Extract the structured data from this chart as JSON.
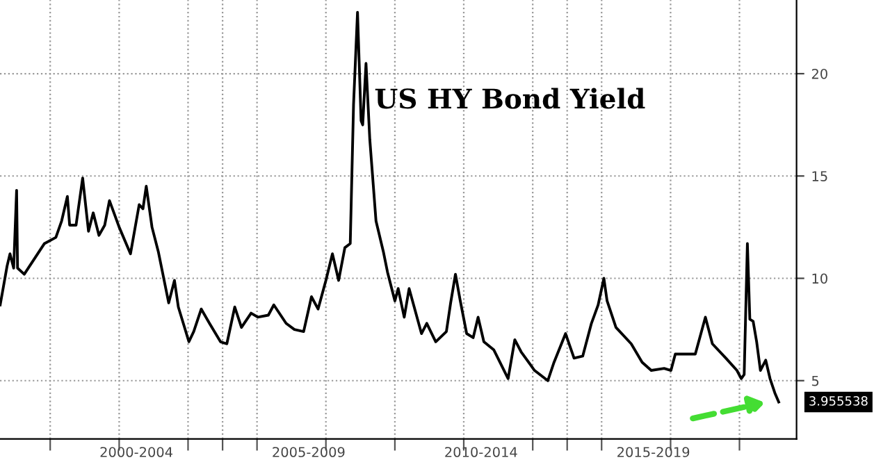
{
  "chart_data": {
    "type": "line",
    "title": "US HY Bond Yield",
    "x": [
      "1998-07-20",
      "1998-10-01",
      "1998-11-01",
      "1998-12-10",
      "1999-01-10",
      "1999-01-20",
      "1999-04-01",
      "1999-11-01",
      "2000-03-01",
      "2000-05-01",
      "2000-07-01",
      "2000-07-25",
      "2000-10-01",
      "2000-12-10",
      "2001-02-10",
      "2001-04-01",
      "2001-06-01",
      "2001-08-01",
      "2001-09-20",
      "2002-01-01",
      "2002-05-01",
      "2002-08-01",
      "2002-09-10",
      "2002-10-15",
      "2002-12-15",
      "2003-02-20",
      "2003-06-10",
      "2003-08-10",
      "2003-09-20",
      "2004-01-10",
      "2004-03-01",
      "2004-05-20",
      "2004-08-15",
      "2004-12-10",
      "2005-02-15",
      "2005-05-10",
      "2005-07-20",
      "2005-10-30",
      "2006-01-10",
      "2006-05-01",
      "2006-06-28",
      "2006-11-05",
      "2007-02-01",
      "2007-05-10",
      "2007-08-01",
      "2007-10-10",
      "2008-01-01",
      "2008-03-10",
      "2008-05-15",
      "2008-07-20",
      "2008-09-15",
      "2008-10-20",
      "2008-12-01",
      "2009-01-08",
      "2009-01-25",
      "2009-03-01",
      "2009-04-10",
      "2009-06-15",
      "2009-09-01",
      "2009-10-15",
      "2010-01-01",
      "2010-02-05",
      "2010-04-10",
      "2010-06-01",
      "2010-10-10",
      "2010-12-05",
      "2011-03-10",
      "2011-07-01",
      "2011-08-15",
      "2011-10-05",
      "2011-11-25",
      "2012-02-01",
      "2012-04-10",
      "2012-06-01",
      "2012-08-01",
      "2012-11-15",
      "2013-04-15",
      "2013-06-25",
      "2013-09-01",
      "2014-01-20",
      "2014-06-10",
      "2014-08-15",
      "2014-12-15",
      "2015-03-15",
      "2015-06-15",
      "2015-09-15",
      "2015-11-25",
      "2016-01-25",
      "2016-02-28",
      "2016-06-01",
      "2016-11-10",
      "2017-03-05",
      "2017-06-10",
      "2017-10-25",
      "2018-01-05",
      "2018-02-20",
      "2018-09-20",
      "2019-01-05",
      "2019-03-20",
      "2019-08-10",
      "2019-12-05",
      "2020-01-20",
      "2020-02-20",
      "2020-03-25",
      "2020-04-20",
      "2020-05-25",
      "2020-07-01",
      "2020-08-10",
      "2020-10-05",
      "2020-11-20",
      "2021-01-10",
      "2021-02-20"
    ],
    "values": [
      8.7,
      10.6,
      11.2,
      10.5,
      14.3,
      10.5,
      10.2,
      11.7,
      12.0,
      12.8,
      14.0,
      12.6,
      12.6,
      14.9,
      12.3,
      13.2,
      12.1,
      12.6,
      13.8,
      12.5,
      11.2,
      13.6,
      13.4,
      14.5,
      12.5,
      11.3,
      8.8,
      9.9,
      8.6,
      6.9,
      7.4,
      8.5,
      7.8,
      6.9,
      6.8,
      8.6,
      7.6,
      8.3,
      8.1,
      8.2,
      8.7,
      7.8,
      7.5,
      7.4,
      9.1,
      8.5,
      9.9,
      11.2,
      9.9,
      11.5,
      11.7,
      18.5,
      23.0,
      17.7,
      17.5,
      20.5,
      16.8,
      12.8,
      11.3,
      10.3,
      8.9,
      9.5,
      8.1,
      9.5,
      7.3,
      7.8,
      6.9,
      7.4,
      8.8,
      10.2,
      8.9,
      7.3,
      7.1,
      8.1,
      6.9,
      6.5,
      5.1,
      7.0,
      6.4,
      5.5,
      5.0,
      5.9,
      7.3,
      6.1,
      6.2,
      7.8,
      8.7,
      10.0,
      8.9,
      7.6,
      6.8,
      5.9,
      5.5,
      5.6,
      5.5,
      6.3,
      6.3,
      8.1,
      6.8,
      6.1,
      5.5,
      5.1,
      5.3,
      11.7,
      8.0,
      7.9,
      6.9,
      5.5,
      6.0,
      5.1,
      4.4,
      3.955538
    ],
    "color": "#000000",
    "annotations": [
      {
        "text": "3.955538",
        "x": "2021-02-20",
        "y": 3.955538
      }
    ],
    "xlim": [
      "1998-07-18",
      "2021-08-28"
    ],
    "xticks": [
      {
        "value": "2000-01-01",
        "label": null
      },
      {
        "value": "2002-01-01",
        "label": null
      },
      {
        "value": "2004-01-01",
        "label": null
      },
      {
        "value": "2005-01-01",
        "label": null
      },
      {
        "value": "2006-01-01",
        "label": null
      },
      {
        "value": "2008-01-01",
        "label": null
      },
      {
        "value": "2010-01-01",
        "label": null
      },
      {
        "value": "2012-01-01",
        "label": null
      },
      {
        "value": "2014-01-01",
        "label": null
      },
      {
        "value": "2015-01-01",
        "label": null
      },
      {
        "value": "2016-01-01",
        "label": null
      },
      {
        "value": "2018-01-01",
        "label": null
      },
      {
        "value": "2020-01-01",
        "label": null
      },
      {
        "value": "2002-07-02",
        "label": "2000-2004"
      },
      {
        "value": "2007-07-02",
        "label": "2005-2009"
      },
      {
        "value": "2012-07-02",
        "label": "2010-2014"
      },
      {
        "value": "2017-07-02",
        "label": "2015-2019"
      }
    ],
    "ylim": [
      2.15,
      23.6
    ],
    "yticks": [
      5,
      10,
      15,
      20
    ],
    "grid": true,
    "marker": "none",
    "line_style": "solid",
    "legend": false
  }
}
